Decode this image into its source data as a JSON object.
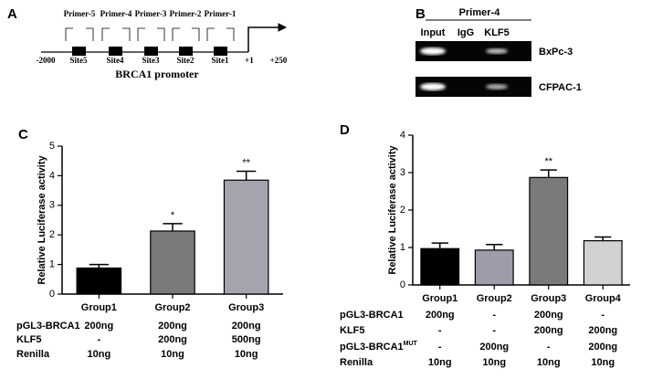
{
  "panel_a": {
    "label": "A",
    "primers": [
      "Primer-5",
      "Primer-4",
      "Primer-3",
      "Primer-2",
      "Primer-1"
    ],
    "sites": [
      "Site5",
      "Site4",
      "Site3",
      "Site2",
      "Site1"
    ],
    "start": "-2000",
    "tss": "+1",
    "end": "+250",
    "caption": "BRCA1 promoter"
  },
  "panel_b": {
    "label": "B",
    "primer": "Primer-4",
    "lanes": [
      "Input",
      "IgG",
      "KLF5"
    ],
    "cell_lines": [
      "BxPc-3",
      "CFPAC-1"
    ]
  },
  "chart_data": [
    {
      "type": "bar",
      "panel": "C",
      "ylabel": "Relative Luciferase activity",
      "categories": [
        "Group1",
        "Group2",
        "Group3"
      ],
      "series": [
        {
          "values": [
            0.88,
            2.13,
            3.85
          ],
          "errors": [
            0.12,
            0.25,
            0.3
          ],
          "colors": [
            "#000000",
            "#7a7a7a",
            "#a4a4ac"
          ]
        }
      ],
      "ylim": [
        0,
        5
      ],
      "yticks": [
        0,
        1,
        2,
        3,
        4,
        5
      ],
      "annotations": [
        {
          "text": "*",
          "x": "Group2"
        },
        {
          "text": "**",
          "x": "Group3"
        }
      ],
      "table": [
        {
          "label": "pGL3-BRCA1",
          "cells": [
            "200ng",
            "200ng",
            "200ng"
          ]
        },
        {
          "label": "KLF5",
          "cells": [
            "-",
            "200ng",
            "500ng"
          ]
        },
        {
          "label": "Renilla",
          "cells": [
            "10ng",
            "10ng",
            "10ng"
          ]
        }
      ]
    },
    {
      "type": "bar",
      "panel": "D",
      "ylabel": "Relative Luciferase activity",
      "categories": [
        "Group1",
        "Group2",
        "Group3",
        "Group4"
      ],
      "series": [
        {
          "values": [
            0.97,
            0.93,
            2.87,
            1.18
          ],
          "errors": [
            0.15,
            0.15,
            0.2,
            0.1
          ],
          "colors": [
            "#000000",
            "#9c9cab",
            "#7a7a7a",
            "#d2d2d2"
          ]
        }
      ],
      "ylim": [
        0,
        4
      ],
      "yticks": [
        0,
        1,
        2,
        3,
        4
      ],
      "annotations": [
        {
          "text": "**",
          "x": "Group3"
        }
      ],
      "table": [
        {
          "label": "pGL3-BRCA1",
          "cells": [
            "200ng",
            "-",
            "200ng",
            "-"
          ]
        },
        {
          "label": "KLF5",
          "cells": [
            "-",
            "-",
            "200ng",
            "200ng"
          ]
        },
        {
          "label": "pGL3-BRCA1",
          "sup": "MUT",
          "cells": [
            "-",
            "200ng",
            "-",
            "200ng"
          ]
        },
        {
          "label": "Renilla",
          "cells": [
            "10ng",
            "10ng",
            "10ng",
            "10ng"
          ]
        }
      ]
    }
  ]
}
